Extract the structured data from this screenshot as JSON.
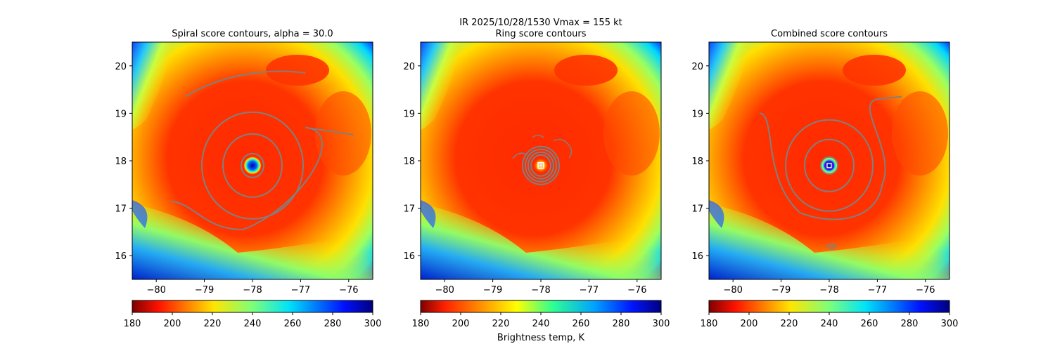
{
  "suptitle_line1": "IR  2025/10/28/1530    Vmax = 155 kt",
  "colorbar_label": "Brightness temp, K",
  "chart_data": [
    {
      "type": "heatmap",
      "title": "Spiral score contours, alpha = 30.0",
      "xlim": [
        -80.5,
        -75.5
      ],
      "ylim": [
        15.5,
        20.5
      ],
      "xticks": [
        -80,
        -79,
        -78,
        -77,
        -76
      ],
      "yticks": [
        16,
        17,
        18,
        19,
        20
      ],
      "center": {
        "lon": -78.0,
        "lat": 17.9
      },
      "contours": "concentric rings with spiral arms (score contours)",
      "colorbar": {
        "min": 180,
        "max": 300,
        "ticks": [
          180,
          200,
          220,
          240,
          260,
          280,
          300
        ],
        "colormap": "jet"
      }
    },
    {
      "type": "heatmap",
      "title": "Ring score contours",
      "xlim": [
        -80.5,
        -75.5
      ],
      "ylim": [
        15.5,
        20.5
      ],
      "xticks": [
        -80,
        -79,
        -78,
        -77,
        -76
      ],
      "yticks": [
        16,
        17,
        18,
        19,
        20
      ],
      "center": {
        "lon": -78.0,
        "lat": 17.9
      },
      "marker": "white square at eye center",
      "colorbar": {
        "min": 180,
        "max": 300,
        "ticks": [
          180,
          200,
          220,
          240,
          260,
          280,
          300
        ],
        "colormap": "jet_r"
      }
    },
    {
      "type": "heatmap",
      "title": "Combined score contours",
      "xlim": [
        -80.5,
        -75.5
      ],
      "ylim": [
        15.5,
        20.5
      ],
      "xticks": [
        -80,
        -79,
        -78,
        -77,
        -76
      ],
      "yticks": [
        16,
        17,
        18,
        19,
        20
      ],
      "center": {
        "lon": -78.0,
        "lat": 17.9
      },
      "marker": "white square with purple circle at eye center",
      "colorbar": {
        "min": 180,
        "max": 300,
        "ticks": [
          180,
          200,
          220,
          240,
          260,
          280,
          300
        ],
        "colormap": "jet"
      }
    }
  ]
}
